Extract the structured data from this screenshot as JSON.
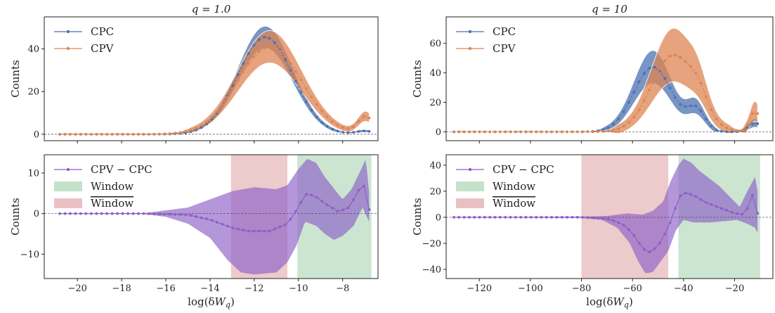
{
  "colors": {
    "cpc": "#4c72b0",
    "cpv": "#dd8452",
    "diff": "#8c5fc6",
    "window": "#55a868",
    "window_bar": "#c44e52",
    "frame": "#222222"
  },
  "chart_data": [
    {
      "id": "left-top",
      "type": "line",
      "title": "q = 1.0",
      "xlabel": "",
      "ylabel": "Counts",
      "xlim": [
        -21.5,
        -6.4
      ],
      "ylim": [
        -3,
        55
      ],
      "yticks": [
        0,
        20,
        40
      ],
      "xticks": [
        -20,
        -18,
        -16,
        -14,
        -12,
        -10,
        -8
      ],
      "xtick_labels_shown": false,
      "legend": "top-left",
      "zero_line": true,
      "series": [
        {
          "name": "CPC",
          "color_key": "cpc",
          "peaks": [
            {
              "mu": -11.5,
              "sigma": 1.25,
              "amp": 45.5
            },
            {
              "mu": -7.0,
              "sigma": 0.4,
              "amp": 1.5
            }
          ],
          "band_rel": 0.1,
          "band_abs": 0.6,
          "x_start": -20.8,
          "x_end": -6.8,
          "n_points": 60
        },
        {
          "name": "CPV",
          "color_key": "cpv",
          "peaks": [
            {
              "mu": -11.3,
              "sigma": 1.45,
              "amp": 41
            },
            {
              "mu": -6.95,
              "sigma": 0.35,
              "amp": 8
            }
          ],
          "band_rel": 0.16,
          "band_abs": 1.0,
          "x_start": -20.8,
          "x_end": -6.8,
          "n_points": 60
        }
      ]
    },
    {
      "id": "right-top",
      "type": "line",
      "title": "q = 10",
      "xlabel": "",
      "ylabel": "Counts",
      "xlim": [
        -133,
        -5
      ],
      "ylim": [
        -6,
        78
      ],
      "yticks": [
        0,
        20,
        40,
        60
      ],
      "xticks": [
        -120,
        -100,
        -80,
        -60,
        -40,
        -20
      ],
      "xtick_labels_shown": false,
      "legend": "top-left",
      "zero_line": true,
      "series": [
        {
          "name": "CPC",
          "color_key": "cpc",
          "peaks": [
            {
              "mu": -52,
              "sigma": 7.5,
              "amp": 44
            },
            {
              "mu": -35,
              "sigma": 3.5,
              "amp": 14
            },
            {
              "mu": -12,
              "sigma": 2.5,
              "amp": 6
            }
          ],
          "band_rel": 0.22,
          "band_abs": 1.5,
          "x_start": -130,
          "x_end": -11,
          "n_points": 60
        },
        {
          "name": "CPV",
          "color_key": "cpv",
          "peaks": [
            {
              "mu": -44,
              "sigma": 8.5,
              "amp": 52
            },
            {
              "mu": -34,
              "sigma": 3.5,
              "amp": 10
            },
            {
              "mu": -12,
              "sigma": 2.0,
              "amp": 14
            }
          ],
          "band_rel": 0.3,
          "band_abs": 2.5,
          "x_start": -130,
          "x_end": -11,
          "n_points": 60
        }
      ]
    },
    {
      "id": "left-bottom",
      "type": "line",
      "title": "",
      "xlabel": "log(δWq)",
      "ylabel": "Counts",
      "xlim": [
        -21.5,
        -6.4
      ],
      "ylim": [
        -16,
        14.5
      ],
      "yticks": [
        -10,
        0,
        10
      ],
      "ytick_labels": [
        "−10",
        "0",
        "10"
      ],
      "xticks": [
        -20,
        -18,
        -16,
        -14,
        -12,
        -10,
        -8
      ],
      "xtick_labels": [
        "−20",
        "−18",
        "−16",
        "−14",
        "−12",
        "−10",
        "−8"
      ],
      "xtick_labels_shown": true,
      "legend": "top-left",
      "zero_line": true,
      "windows": [
        {
          "label": "Window",
          "color_key": "window",
          "x0": -10.05,
          "x1": -6.7
        },
        {
          "label": "Window",
          "overline": true,
          "color_key": "window_bar",
          "x0": -13.05,
          "x1": -10.5
        }
      ],
      "series": [
        {
          "name": "CPV − CPC",
          "color_key": "diff",
          "x_start": -20.8,
          "x_end": -6.8,
          "n_points": 60,
          "mean_points": [
            [
              -20.8,
              0
            ],
            [
              -17,
              0
            ],
            [
              -15,
              -0.3
            ],
            [
              -14,
              -1.5
            ],
            [
              -13,
              -3.5
            ],
            [
              -12.3,
              -4.3
            ],
            [
              -11.3,
              -4.3
            ],
            [
              -10.5,
              -2.5
            ],
            [
              -10,
              1.5
            ],
            [
              -9.7,
              4.8
            ],
            [
              -9.3,
              4.5
            ],
            [
              -8.8,
              2.5
            ],
            [
              -8.2,
              0.5
            ],
            [
              -7.7,
              1.5
            ],
            [
              -7.2,
              6.5
            ],
            [
              -6.9,
              7
            ],
            [
              -6.8,
              1
            ]
          ],
          "upper_points": [
            [
              -20.8,
              0
            ],
            [
              -17,
              0.1
            ],
            [
              -15,
              1.5
            ],
            [
              -14,
              3.5
            ],
            [
              -13,
              5.5
            ],
            [
              -12,
              6.5
            ],
            [
              -11,
              6
            ],
            [
              -10.5,
              7
            ],
            [
              -10,
              11
            ],
            [
              -9.6,
              13.5
            ],
            [
              -9.2,
              12.5
            ],
            [
              -8.8,
              9
            ],
            [
              -8.3,
              5.5
            ],
            [
              -8,
              3.5
            ],
            [
              -7.6,
              6
            ],
            [
              -7.2,
              10.5
            ],
            [
              -6.95,
              13.5
            ],
            [
              -6.8,
              5
            ]
          ],
          "lower_points": [
            [
              -20.8,
              0
            ],
            [
              -17,
              -0.1
            ],
            [
              -16,
              -0.8
            ],
            [
              -15,
              -2.5
            ],
            [
              -14,
              -6
            ],
            [
              -13.2,
              -11.5
            ],
            [
              -12.6,
              -14.5
            ],
            [
              -12,
              -15
            ],
            [
              -11,
              -14.5
            ],
            [
              -10.5,
              -12
            ],
            [
              -10.1,
              -8
            ],
            [
              -9.7,
              -2
            ],
            [
              -9.2,
              -3
            ],
            [
              -8.8,
              -5
            ],
            [
              -8.4,
              -6.5
            ],
            [
              -8,
              -5.5
            ],
            [
              -7.5,
              -3
            ],
            [
              -7.1,
              1.5
            ],
            [
              -6.8,
              -2
            ]
          ]
        }
      ]
    },
    {
      "id": "right-bottom",
      "type": "line",
      "title": "",
      "xlabel": "log(δWq)",
      "ylabel": "Counts",
      "xlim": [
        -133,
        -5
      ],
      "ylim": [
        -47,
        48
      ],
      "yticks": [
        -40,
        -20,
        0,
        20,
        40
      ],
      "ytick_labels": [
        "−40",
        "−20",
        "0",
        "20",
        "40"
      ],
      "xticks": [
        -120,
        -100,
        -80,
        -60,
        -40,
        -20
      ],
      "xtick_labels": [
        "−120",
        "−100",
        "−80",
        "−60",
        "−40",
        "−20"
      ],
      "xtick_labels_shown": true,
      "legend": "top-left",
      "zero_line": true,
      "windows": [
        {
          "label": "Window",
          "color_key": "window",
          "x0": -42,
          "x1": -10
        },
        {
          "label": "Window",
          "overline": true,
          "color_key": "window_bar",
          "x0": -80,
          "x1": -46
        }
      ],
      "series": [
        {
          "name": "CPV − CPC",
          "color_key": "diff",
          "x_start": -130,
          "x_end": -11,
          "n_points": 60,
          "mean_points": [
            [
              -130,
              0
            ],
            [
              -80,
              0
            ],
            [
              -70,
              -1
            ],
            [
              -64,
              -5
            ],
            [
              -60,
              -12
            ],
            [
              -56,
              -24
            ],
            [
              -53,
              -27
            ],
            [
              -50,
              -22
            ],
            [
              -47,
              -12
            ],
            [
              -44,
              2
            ],
            [
              -42,
              15
            ],
            [
              -40,
              19
            ],
            [
              -36,
              17
            ],
            [
              -32,
              12
            ],
            [
              -28,
              9
            ],
            [
              -24,
              6
            ],
            [
              -20,
              3
            ],
            [
              -16,
              2
            ],
            [
              -13,
              17
            ],
            [
              -11,
              3
            ]
          ],
          "upper_points": [
            [
              -130,
              0
            ],
            [
              -80,
              0.5
            ],
            [
              -70,
              1
            ],
            [
              -62,
              3
            ],
            [
              -56,
              2
            ],
            [
              -52,
              5
            ],
            [
              -48,
              12
            ],
            [
              -45,
              28
            ],
            [
              -42,
              40
            ],
            [
              -40,
              45
            ],
            [
              -37,
              42
            ],
            [
              -34,
              36
            ],
            [
              -30,
              30
            ],
            [
              -26,
              24
            ],
            [
              -22,
              16
            ],
            [
              -18,
              8
            ],
            [
              -15,
              20
            ],
            [
              -12,
              31
            ],
            [
              -11,
              20
            ]
          ],
          "lower_points": [
            [
              -130,
              0
            ],
            [
              -80,
              -0.5
            ],
            [
              -72,
              -2
            ],
            [
              -66,
              -8
            ],
            [
              -61,
              -20
            ],
            [
              -58,
              -33
            ],
            [
              -55,
              -43
            ],
            [
              -52,
              -42
            ],
            [
              -49,
              -34
            ],
            [
              -46,
              -26
            ],
            [
              -43,
              -10
            ],
            [
              -40,
              -2
            ],
            [
              -36,
              -4
            ],
            [
              -30,
              -4
            ],
            [
              -24,
              -3
            ],
            [
              -19,
              -2
            ],
            [
              -15,
              -5
            ],
            [
              -12,
              -8
            ],
            [
              -11,
              -12
            ]
          ]
        }
      ]
    }
  ]
}
